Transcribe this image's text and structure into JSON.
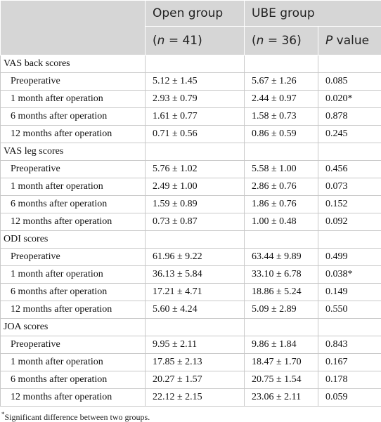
{
  "header": {
    "group_labels": [
      "Open group",
      "UBE group"
    ],
    "n_labels": [
      {
        "open": "(",
        "var": "n",
        "close": " = 41)"
      },
      {
        "open": "(",
        "var": "n",
        "close": " = 36)"
      }
    ],
    "p_label": {
      "var": "P",
      "text": " value"
    }
  },
  "sections": [
    {
      "title": "VAS back scores",
      "rows": [
        [
          "Preoperative",
          "5.12 ± 1.45",
          "5.67 ± 1.26",
          "0.085"
        ],
        [
          "1 month after operation",
          "2.93 ± 0.79",
          "2.44 ± 0.97",
          "0.020*"
        ],
        [
          "6 months after operation",
          "1.61 ± 0.77",
          "1.58 ± 0.73",
          "0.878"
        ],
        [
          "12 months after operation",
          "0.71 ± 0.56",
          "0.86 ± 0.59",
          "0.245"
        ]
      ]
    },
    {
      "title": "VAS leg scores",
      "rows": [
        [
          "Preoperative",
          "5.76 ± 1.02",
          "5.58 ± 1.00",
          "0.456"
        ],
        [
          "1 month after operation",
          "2.49 ± 1.00",
          "2.86 ± 0.76",
          "0.073"
        ],
        [
          "6 months after operation",
          "1.59 ± 0.89",
          "1.86 ± 0.76",
          "0.152"
        ],
        [
          "12 months after operation",
          "0.73 ± 0.87",
          "1.00 ± 0.48",
          "0.092"
        ]
      ]
    },
    {
      "title": "ODI scores",
      "rows": [
        [
          "Preoperative",
          "61.96 ± 9.22",
          "63.44 ± 9.89",
          "0.499"
        ],
        [
          "1 month after operation",
          "36.13 ± 5.84",
          "33.10 ± 6.78",
          "0.038*"
        ],
        [
          "6 months after operation",
          "17.21 ± 4.71",
          "18.86 ± 5.24",
          "0.149"
        ],
        [
          "12 months after operation",
          "5.60 ± 4.24",
          "5.09 ± 2.89",
          "0.550"
        ]
      ]
    },
    {
      "title": "JOA scores",
      "rows": [
        [
          "Preoperative",
          "9.95 ± 2.11",
          "9.86 ± 1.84",
          "0.843"
        ],
        [
          "1 month after operation",
          "17.85 ± 2.13",
          "18.47 ± 1.70",
          "0.167"
        ],
        [
          "6 months after operation",
          "20.27 ± 1.57",
          "20.75 ± 1.54",
          "0.178"
        ],
        [
          "12 months after operation",
          "22.12 ± 2.15",
          "23.06 ± 2.11",
          "0.059"
        ]
      ]
    }
  ],
  "footnote": {
    "marker": "*",
    "text": "Significant difference between two groups."
  }
}
